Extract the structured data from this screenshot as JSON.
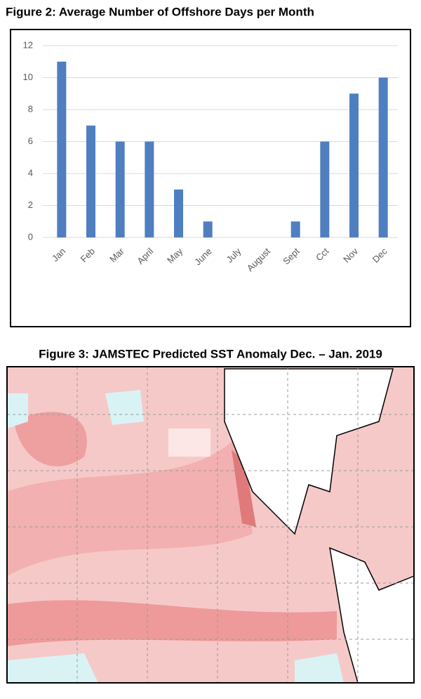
{
  "figure2_caption": "Figure 2: Average Number of Offshore Days per Month",
  "chart_data": {
    "type": "bar",
    "categories": [
      "Jan",
      "Feb",
      "Mar",
      "April",
      "May",
      "June",
      "July",
      "August",
      "Sept",
      "Cct",
      "Nov",
      "Dec"
    ],
    "values": [
      11,
      7,
      6,
      6,
      3,
      1,
      0,
      0,
      1,
      6,
      9,
      10
    ],
    "color": "#4f7fc0",
    "ylim": [
      0,
      12
    ],
    "yticks": [
      0,
      2,
      4,
      6,
      8,
      10,
      12
    ],
    "grid": true
  },
  "figure3_caption": "Figure 3: JAMSTEC Predicted SST Anomaly Dec. – Jan. 2019"
}
